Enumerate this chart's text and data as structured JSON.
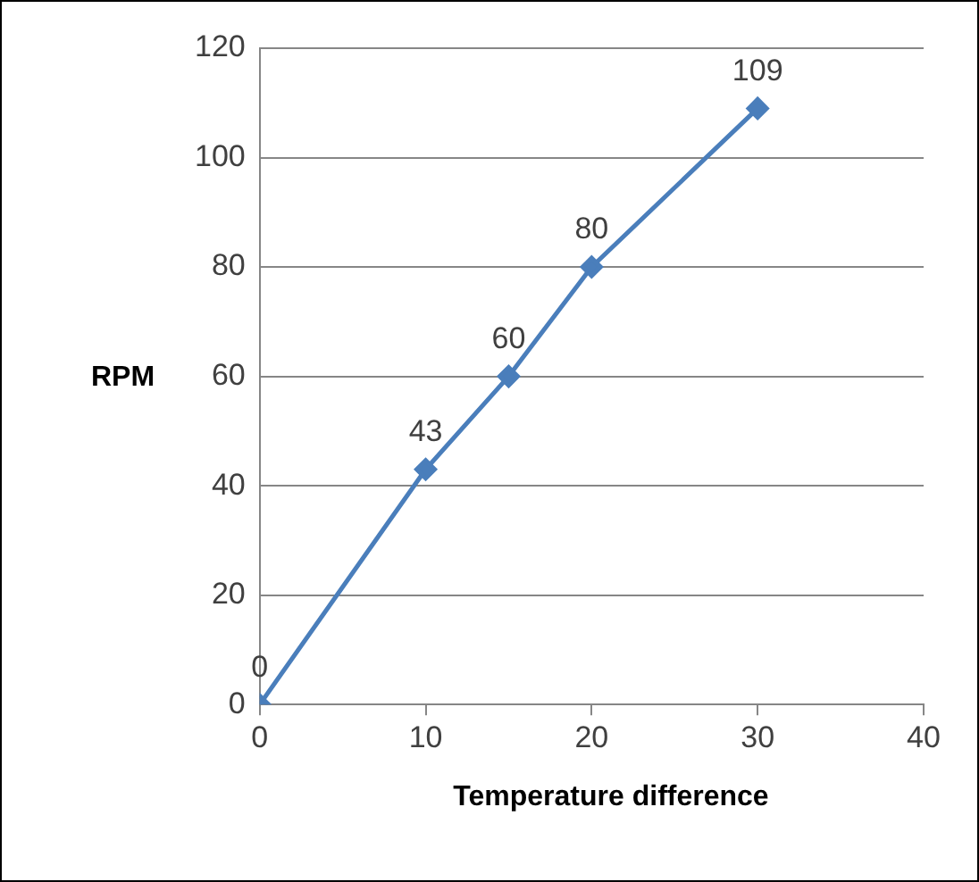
{
  "chart_data": {
    "type": "line",
    "xlabel": "Temperature difference",
    "ylabel": "RPM",
    "x": [
      0,
      10,
      15,
      20,
      30
    ],
    "series": [
      {
        "color": "#4a7ebb",
        "values": [
          0,
          43,
          60,
          80,
          109
        ]
      }
    ],
    "xlim": [
      0,
      40
    ],
    "xticks": [
      0,
      10,
      20,
      30,
      40
    ],
    "ylim": [
      0,
      120
    ],
    "yticks": [
      0,
      20,
      40,
      60,
      80,
      100,
      120
    ],
    "grid": "y",
    "legend": false,
    "marker": "diamond",
    "line_style": "solid",
    "data_labels": true
  }
}
